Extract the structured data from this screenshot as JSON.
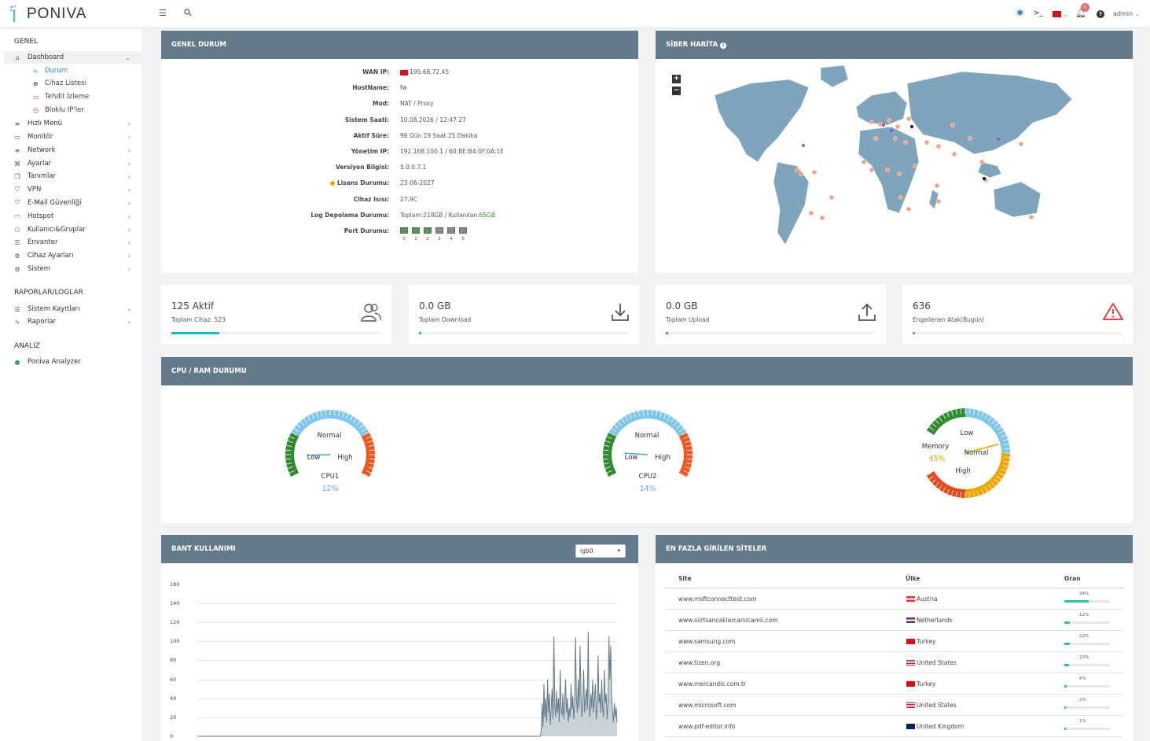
{
  "app": {
    "logo": "PONIVA"
  },
  "topbar": {
    "notif_count": "0",
    "user": "admin"
  },
  "sidebar": {
    "sections": {
      "genel": "GENEL",
      "raporlar": "RAPORLAR/LOGLAR",
      "analiz": "ANALIZ"
    },
    "dashboard": "Dashboard",
    "sub": [
      "Durum",
      "Cihaz Listesi",
      "Tehdit İzleme",
      "Bloklu IP'ler"
    ],
    "items": [
      "Hızlı Menü",
      "Monitör",
      "Network",
      "Ayarlar",
      "Tanımlar",
      "VPN",
      "E-Mail Güvenliği",
      "Hotspot",
      "Kullanıcı&Gruplar",
      "Envanter",
      "Cihaz Ayarları",
      "Sistem"
    ],
    "report_items": [
      "Sistem Kayıtları",
      "Raporlar"
    ],
    "analiz_item": "Poniva Analyzer"
  },
  "genel_durum": {
    "title": "GENEL DURUM",
    "rows": [
      {
        "key": "WAN IP:",
        "value": "195.68.72.45"
      },
      {
        "key": "HostName:",
        "value": "fw"
      },
      {
        "key": "Mod:",
        "value": "NAT / Proxy"
      },
      {
        "key": "Sistem Saati:",
        "value": "10.08.2026 / 12:47:27"
      },
      {
        "key": "Aktif Süre:",
        "value": "96 Gün 19 Saat 25 Dakika"
      },
      {
        "key": "Yönetim IP:",
        "value": "192.168.100.1 / 60:BE:B4:0F:0A:1E"
      },
      {
        "key": "Versiyon Bilgisi:",
        "value": "5.0.0.7.1"
      },
      {
        "key": "Lisans Durumu:",
        "value": "23-06-2027"
      },
      {
        "key": "Cihaz Isısı:",
        "value": "27.9C"
      },
      {
        "key": "Log Depolama Durumu:",
        "value": "Toplam:218GB / Kullanılan:"
      },
      {
        "key": "Port Durumu:",
        "value": ""
      }
    ],
    "log_used": "65GB",
    "ports": [
      "0",
      "1",
      "2",
      "3",
      "4",
      "5"
    ]
  },
  "siber_harita": {
    "title": "SİBER HARİTA",
    "zoom_in": "+",
    "zoom_out": "−"
  },
  "stats": [
    {
      "value": "125 Aktif",
      "label": "Toplam Cihaz: 523",
      "progress": 0.23,
      "color": "#17b9c6"
    },
    {
      "value": "0.0 GB",
      "label": "Toplam Download",
      "progress": 0.01,
      "color": "#2fc19c"
    },
    {
      "value": "0.0 GB",
      "label": "Toplam Upload",
      "progress": 0.01,
      "color": "#ef5a4c"
    },
    {
      "value": "636",
      "label": "Engellenen Atak(Bugün)",
      "progress": 0.01,
      "color": "#ef7a3c"
    }
  ],
  "cpu_ram": {
    "title": "CPU / RAM DURUMU",
    "gauges": [
      {
        "name": "CPU1",
        "value": "12%",
        "labels": [
          "Normal",
          "Low",
          "High"
        ]
      },
      {
        "name": "CPU2",
        "value": "14%",
        "labels": [
          "Normal",
          "Low",
          "High"
        ]
      },
      {
        "name": "Memory",
        "value": "45%",
        "labels": [
          "Low",
          "Normal",
          "High"
        ]
      }
    ]
  },
  "bant": {
    "title": "BANT KULLANIMI",
    "interface": "igb0",
    "y_ticks": [
      "180",
      "140",
      "120",
      "100",
      "80",
      "60",
      "40",
      "20",
      "0"
    ]
  },
  "chart_data": {
    "type": "area",
    "title": "BANT KULLANIMI",
    "ylim": [
      0,
      160
    ],
    "y_ticks": [
      0,
      20,
      40,
      60,
      80,
      100,
      120,
      140
    ],
    "values": [
      0,
      0,
      0,
      0,
      0,
      0,
      0,
      0,
      0,
      0,
      0,
      0,
      0,
      0,
      0,
      0,
      0,
      0,
      0,
      0,
      0,
      0,
      0,
      0,
      0,
      0,
      0,
      0,
      0,
      0,
      0,
      0,
      0,
      0,
      0,
      0,
      0,
      0,
      0,
      0,
      0,
      0,
      0,
      0,
      0,
      0,
      0,
      0,
      0,
      0,
      0,
      0,
      0,
      0,
      0,
      0,
      0,
      0,
      0,
      0,
      0,
      0,
      0,
      0,
      0,
      0,
      0,
      0,
      0,
      0,
      0,
      0,
      0,
      0,
      0,
      0,
      0,
      0,
      0,
      0,
      0,
      0,
      0,
      0,
      0,
      0,
      0,
      0,
      0,
      0,
      0,
      0,
      0,
      0,
      0,
      0,
      0,
      0,
      0,
      0,
      0,
      0,
      0,
      0,
      0,
      0,
      0,
      0,
      0,
      0,
      0,
      0,
      0,
      0,
      0,
      0,
      0,
      0,
      0,
      0,
      0,
      0,
      0,
      0,
      0,
      0,
      0,
      0,
      0,
      0,
      0,
      0,
      0,
      0,
      0,
      0,
      0,
      0,
      0,
      0,
      0,
      0,
      0,
      0,
      0,
      0,
      0,
      0,
      0,
      0,
      0,
      0,
      0,
      0,
      0,
      0,
      0,
      0,
      0,
      0,
      0,
      0,
      0,
      0,
      0,
      0,
      0,
      0,
      0,
      0,
      0,
      0,
      0,
      0,
      0,
      0,
      0,
      0,
      0,
      0,
      0,
      0,
      0,
      0,
      0,
      0,
      0,
      0,
      0,
      0,
      0,
      0,
      0,
      0,
      0,
      0,
      0,
      0,
      0,
      0,
      0,
      0,
      0,
      0,
      0,
      0,
      0,
      0,
      0,
      0,
      0,
      0,
      0,
      0,
      0,
      0,
      0,
      0,
      0,
      0,
      0,
      0,
      0,
      0,
      0,
      0,
      0,
      0,
      0,
      0,
      0,
      0,
      0,
      0,
      0,
      0,
      0,
      0,
      0,
      0,
      0,
      0,
      0,
      0,
      0,
      0,
      0,
      0,
      0,
      0,
      0,
      0,
      0,
      0,
      0,
      0,
      0,
      0,
      0,
      0,
      0,
      0,
      0,
      0,
      0,
      0,
      0,
      0,
      0,
      0,
      0,
      0,
      0,
      0,
      0,
      0,
      0,
      0,
      0,
      0,
      0,
      0,
      0,
      0,
      0,
      0,
      0,
      0,
      0,
      0,
      0,
      0,
      0,
      0,
      0,
      0,
      0,
      0,
      0,
      0,
      0,
      0,
      0,
      0,
      0,
      0,
      0,
      0,
      0,
      0,
      0,
      0,
      0,
      0,
      0,
      0,
      0,
      0,
      0,
      0,
      0,
      0,
      0,
      0,
      0,
      0,
      0,
      0,
      0,
      0,
      0,
      0,
      0,
      0,
      0,
      0,
      0,
      0,
      0,
      0,
      0,
      0,
      0,
      0,
      0,
      0,
      0,
      0,
      0,
      0,
      0,
      0,
      0,
      0,
      0,
      0,
      0,
      0,
      0,
      0,
      0,
      0,
      0,
      0,
      0,
      0,
      0,
      0,
      0,
      0,
      0,
      0,
      0,
      0,
      0,
      0,
      0,
      0,
      0,
      0,
      0,
      5,
      35,
      10,
      55,
      20,
      40,
      15,
      60,
      25,
      45,
      12,
      30,
      50,
      18,
      105,
      35,
      20,
      48,
      25,
      40,
      15,
      70,
      30,
      22,
      45,
      18,
      35,
      60,
      25,
      40,
      15,
      30,
      20,
      55,
      28,
      42,
      18,
      35,
      104,
      40,
      25,
      60,
      30,
      95,
      45,
      20,
      35,
      70,
      25,
      40,
      50,
      28,
      110,
      35,
      20,
      45,
      30,
      60,
      25,
      40,
      55,
      18,
      30,
      85,
      35,
      45,
      25,
      60,
      30,
      20,
      70,
      35,
      45,
      18,
      35,
      105,
      60,
      95,
      40,
      25,
      15,
      35,
      20,
      30,
      15
    ]
  },
  "top_sites": {
    "title": "EN FAZLA GİRİLEN SİTELER",
    "headers": [
      "Site",
      "Ülke",
      "Oran"
    ],
    "rows": [
      {
        "site": "www.msftconnecttest.com",
        "country": "Austria",
        "pct": "54%",
        "p": 0.54,
        "flag": "at"
      },
      {
        "site": "www.siirtsancaklarcarsicamii.com",
        "country": "Netherlands",
        "pct": "12%",
        "p": 0.12,
        "flag": "nl"
      },
      {
        "site": "www.samsung.com",
        "country": "Turkey",
        "pct": "12%",
        "p": 0.12,
        "flag": "tr"
      },
      {
        "site": "www.tizen.org",
        "country": "United States",
        "pct": "10%",
        "p": 0.1,
        "flag": "us"
      },
      {
        "site": "www.mercandis.com.tr",
        "country": "Turkey",
        "pct": "6%",
        "p": 0.06,
        "flag": "tr"
      },
      {
        "site": "www.microsoft.com",
        "country": "United States",
        "pct": "2%",
        "p": 0.02,
        "flag": "us"
      },
      {
        "site": "www.pdf-editor.info",
        "country": "United Kingdom",
        "pct": "1%",
        "p": 0.01,
        "flag": "gb"
      }
    ]
  }
}
